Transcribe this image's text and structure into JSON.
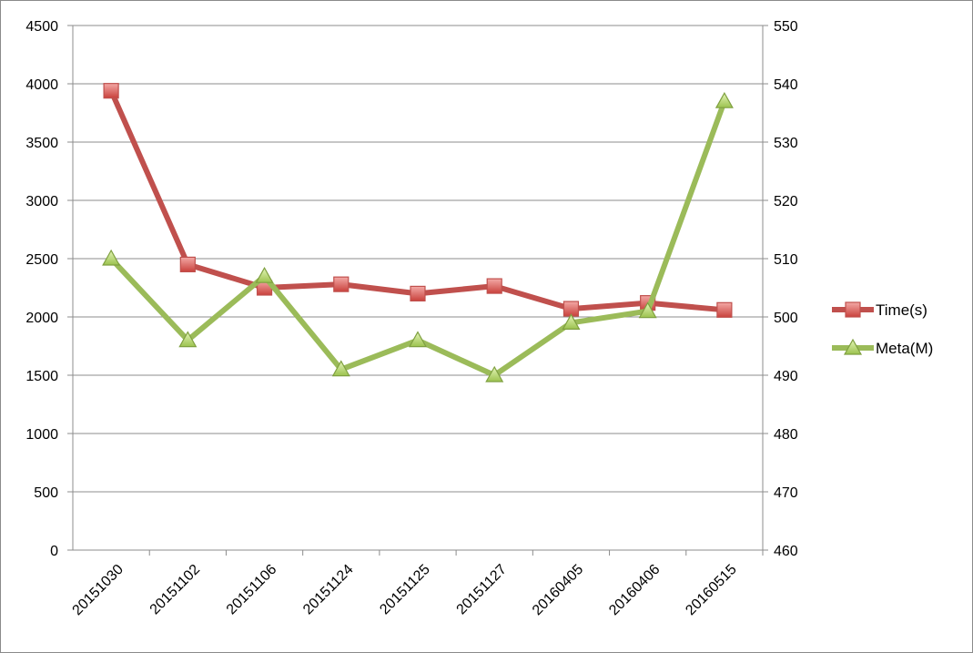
{
  "chart_data": {
    "type": "line",
    "categories": [
      "20151030",
      "20151102",
      "20151106",
      "20151124",
      "20151125",
      "20151127",
      "20160405",
      "20160406",
      "20160515"
    ],
    "series": [
      {
        "name": "Time(s)",
        "axis": "left",
        "marker": "square",
        "color": "#c0504d",
        "values": [
          3940,
          2450,
          2250,
          2280,
          2200,
          2265,
          2070,
          2120,
          2060
        ]
      },
      {
        "name": "Meta(M)",
        "axis": "right",
        "marker": "triangle",
        "color": "#9bbb59",
        "values": [
          510,
          496,
          507,
          491,
          496,
          490,
          499,
          501,
          537
        ]
      }
    ],
    "y_left": {
      "min": 0,
      "max": 4500,
      "step": 500,
      "tick_labels": [
        "0",
        "500",
        "1000",
        "1500",
        "2000",
        "2500",
        "3000",
        "3500",
        "4000",
        "4500"
      ]
    },
    "y_right": {
      "min": 460,
      "max": 550,
      "step": 10,
      "tick_labels": [
        "460",
        "470",
        "480",
        "490",
        "500",
        "510",
        "520",
        "530",
        "540",
        "550"
      ]
    },
    "grid": true,
    "legend_position": "right"
  }
}
